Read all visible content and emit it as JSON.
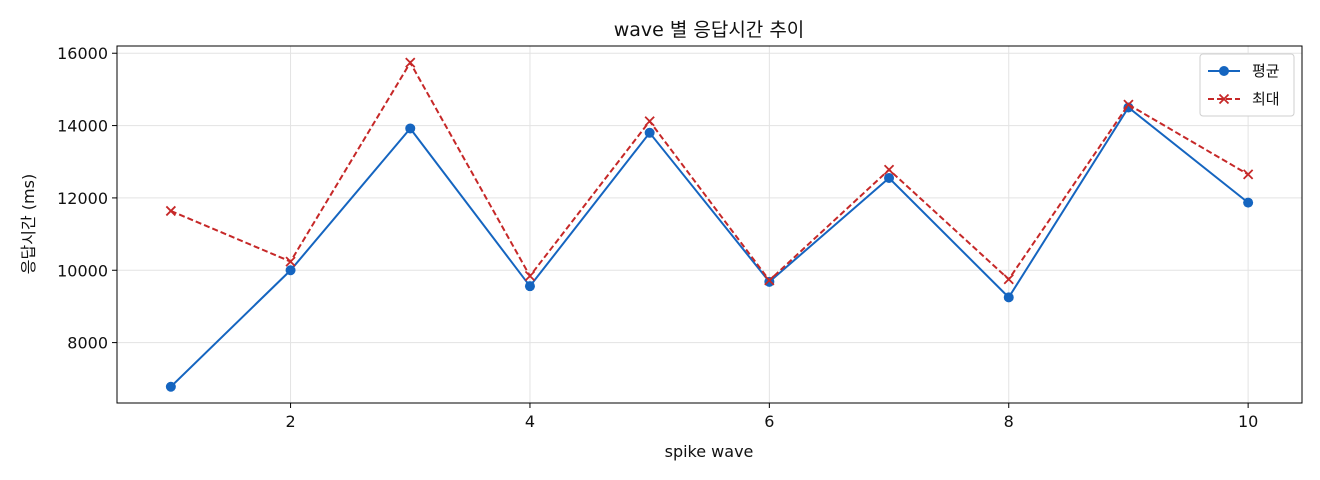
{
  "chart_data": {
    "type": "line",
    "title": "wave 별 응답시간 추이",
    "xlabel": "spike wave",
    "ylabel": "응답시간 (ms)",
    "x": [
      1,
      2,
      3,
      4,
      5,
      6,
      7,
      8,
      9,
      10
    ],
    "xlim": [
      0.55,
      10.45
    ],
    "ylim": [
      6330,
      16200
    ],
    "xticks": [
      2,
      4,
      6,
      8,
      10
    ],
    "yticks": [
      8000,
      10000,
      12000,
      14000,
      16000
    ],
    "grid": true,
    "legend_position": "top-right",
    "series": [
      {
        "name": "평균",
        "color": "#1565c0",
        "line_style": "solid",
        "marker": "circle",
        "values": [
          6780,
          10000,
          13920,
          9560,
          13800,
          9680,
          12550,
          9250,
          14500,
          11870
        ]
      },
      {
        "name": "최대",
        "color": "#c62828",
        "line_style": "dashed",
        "marker": "x",
        "values": [
          11640,
          10240,
          15740,
          9840,
          14120,
          9720,
          12780,
          9750,
          14580,
          12650
        ]
      }
    ]
  }
}
